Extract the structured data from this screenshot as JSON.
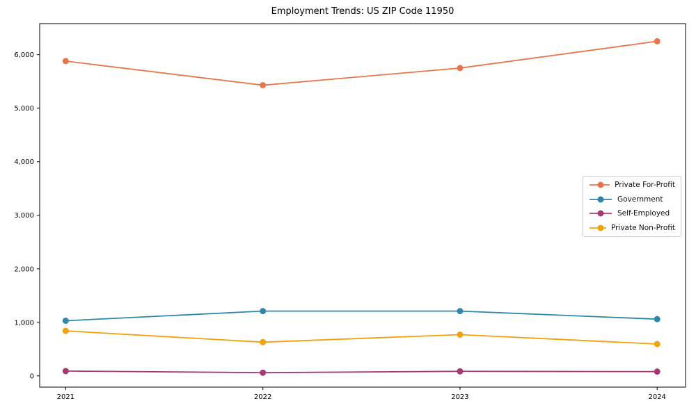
{
  "title": "Employment Trends: US ZIP Code 11950",
  "chart_data": {
    "type": "line",
    "title": "Employment Trends: US ZIP Code 11950",
    "x": [
      2021,
      2022,
      2023,
      2024
    ],
    "x_tick_labels": [
      "2021",
      "2022",
      "2023",
      "2024"
    ],
    "y_ticks": [
      0,
      1000,
      2000,
      3000,
      4000,
      5000,
      6000
    ],
    "y_tick_labels": [
      "0",
      "1,000",
      "2,000",
      "3,000",
      "4,000",
      "5,000",
      "6,000"
    ],
    "xlim": [
      2020.868,
      2024.144
    ],
    "ylim": [
      -210,
      6580
    ],
    "xlabel": "",
    "ylabel": "",
    "grid": false,
    "marker": "circle",
    "legend_position": "center right inside",
    "series": [
      {
        "name": "Private For-Profit",
        "color": "#E8764B",
        "values": [
          5880,
          5430,
          5750,
          6250
        ]
      },
      {
        "name": "Government",
        "color": "#2E86AB",
        "values": [
          1030,
          1210,
          1210,
          1060
        ]
      },
      {
        "name": "Self-Employed",
        "color": "#A23B72",
        "values": [
          90,
          60,
          85,
          80
        ]
      },
      {
        "name": "Private Non-Profit",
        "color": "#F1A208",
        "values": [
          840,
          630,
          770,
          595
        ]
      }
    ]
  }
}
